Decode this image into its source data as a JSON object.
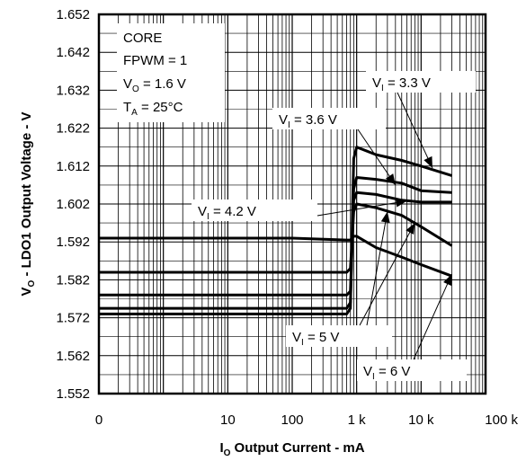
{
  "chart_data": {
    "type": "line",
    "title": "",
    "xlabel": {
      "main": "I",
      "sub": "O",
      "rest": " Output Current - mA"
    },
    "ylabel": {
      "main": "V",
      "sub": "O",
      "rest": " - LDO1 Output Voltage - V"
    },
    "x_scale": "log",
    "xlim": [
      0.1,
      100000
    ],
    "ylim": [
      1.552,
      1.652
    ],
    "x_ticks": [
      {
        "value": 0.1,
        "label": "0"
      },
      {
        "value": 10,
        "label": "10"
      },
      {
        "value": 100,
        "label": "100"
      },
      {
        "value": 1000,
        "label": "1 k"
      },
      {
        "value": 10000,
        "label": "10 k"
      },
      {
        "value": 100000,
        "label": "100 k"
      }
    ],
    "y_ticks": [
      "1.552",
      "1.562",
      "1.572",
      "1.582",
      "1.592",
      "1.602",
      "1.612",
      "1.622",
      "1.632",
      "1.642",
      "1.652"
    ],
    "grid": true,
    "conditions": {
      "line1": "CORE",
      "line2": "FPWM = 1",
      "line3": {
        "main": "V",
        "sub": "O",
        "rest": " = 1.6 V"
      },
      "line4": {
        "main": "T",
        "sub": "A",
        "rest": " = 25°C"
      }
    },
    "series": [
      {
        "label": {
          "main": "V",
          "sub": "I",
          "rest": " = 3.3 V"
        },
        "x": [
          0.1,
          100,
          700,
          800,
          900,
          1000,
          2000,
          5000,
          10000,
          30000
        ],
        "y": [
          1.573,
          1.573,
          1.573,
          1.5745,
          1.614,
          1.617,
          1.615,
          1.6135,
          1.612,
          1.6095
        ]
      },
      {
        "label": {
          "main": "V",
          "sub": "I",
          "rest": " = 3.6 V"
        },
        "x": [
          0.1,
          100,
          700,
          800,
          900,
          1000,
          2000,
          5000,
          10000,
          30000
        ],
        "y": [
          1.5745,
          1.5745,
          1.5745,
          1.576,
          1.606,
          1.609,
          1.6085,
          1.6075,
          1.6055,
          1.605
        ]
      },
      {
        "label": {
          "main": "V",
          "sub": "I",
          "rest": " = 4.2 V"
        },
        "x": [
          0.1,
          100,
          700,
          800,
          900,
          1000,
          2000,
          5000,
          10000,
          30000
        ],
        "y": [
          1.578,
          1.578,
          1.578,
          1.579,
          1.603,
          1.605,
          1.6045,
          1.603,
          1.6025,
          1.6025
        ]
      },
      {
        "label": {
          "main": "V",
          "sub": "I",
          "rest": " = 5 V"
        },
        "x": [
          0.1,
          100,
          700,
          800,
          900,
          1000,
          2000,
          5000,
          10000,
          30000
        ],
        "y": [
          1.584,
          1.584,
          1.584,
          1.585,
          1.6,
          1.602,
          1.601,
          1.599,
          1.596,
          1.591
        ]
      },
      {
        "label": {
          "main": "V",
          "sub": "I",
          "rest": " = 6 V"
        },
        "x": [
          0.1,
          100,
          700,
          800,
          900,
          1000,
          2000,
          5000,
          10000,
          30000
        ],
        "y": [
          1.593,
          1.593,
          1.5925,
          1.5925,
          1.5935,
          1.5935,
          1.5905,
          1.588,
          1.586,
          1.583
        ]
      }
    ]
  }
}
